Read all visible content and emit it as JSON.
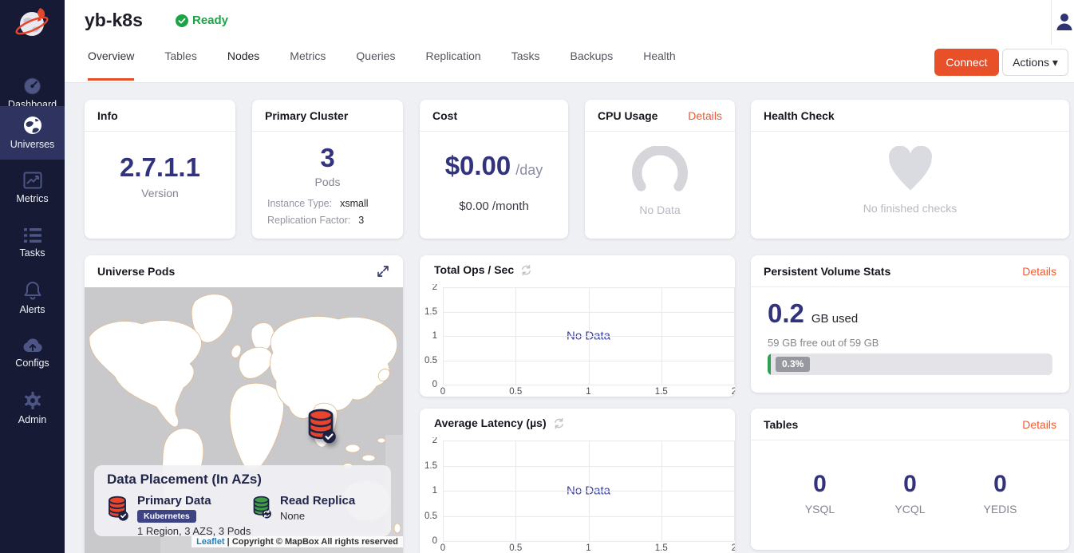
{
  "colors": {
    "accent_orange": "#e8502a",
    "navy_number": "#32337c",
    "status_green": "#1da345",
    "sidebar_bg": "#161a34",
    "sidebar_active_bg": "#2e345f",
    "no_data_indigo": "#3f4195",
    "progress_green": "#2ea052"
  },
  "icons": {
    "logo": "yugabyte-planet-rocket",
    "status": "check-circle",
    "user": "person",
    "actions_caret": "caret-down",
    "expand": "diagonal-resize-arrows",
    "refresh": "circular-arrows",
    "cpu_gauge": "arc-gauge",
    "health": "heart",
    "primary_marker": "red-database-check",
    "replica_marker": "green-database-sync"
  },
  "sidebar": {
    "items": [
      {
        "label": "Dashboard"
      },
      {
        "label": "Universes",
        "active": true
      },
      {
        "label": "Metrics"
      },
      {
        "label": "Tasks"
      },
      {
        "label": "Alerts"
      },
      {
        "label": "Configs"
      },
      {
        "label": "Admin"
      }
    ]
  },
  "header": {
    "title": "yb-k8s",
    "status": "Ready",
    "tabs": [
      "Overview",
      "Tables",
      "Nodes",
      "Metrics",
      "Queries",
      "Replication",
      "Tasks",
      "Backups",
      "Health"
    ],
    "active_tab": "Overview",
    "connect_label": "Connect",
    "actions_label": "Actions ▾"
  },
  "cards": {
    "info": {
      "title": "Info",
      "value": "2.7.1.1",
      "label": "Version"
    },
    "primary_cluster": {
      "title": "Primary Cluster",
      "value": "3",
      "label": "Pods",
      "rows": [
        {
          "k": "Instance Type:",
          "v": "xsmall"
        },
        {
          "k": "Replication Factor:",
          "v": "3"
        }
      ]
    },
    "cost": {
      "title": "Cost",
      "value": "$0.00",
      "unit": "/day",
      "secondary": "$0.00 /month"
    },
    "cpu": {
      "title": "CPU Usage",
      "link": "Details",
      "empty": "No Data"
    },
    "health": {
      "title": "Health Check",
      "empty": "No finished checks"
    },
    "pods_map": {
      "title": "Universe Pods",
      "overlay": {
        "heading": "Data Placement (In AZs)",
        "primary": {
          "label": "Primary Data",
          "badge": "Kubernetes",
          "desc": "1 Region, 3 AZS, 3 Pods"
        },
        "replica": {
          "label": "Read Replica",
          "desc": "None"
        }
      },
      "attribution": {
        "leaflet": "Leaflet",
        "separator": "|",
        "copyright": "Copyright © MapBox All rights reserved"
      }
    },
    "volume": {
      "title": "Persistent Volume Stats",
      "link": "Details",
      "value": "0.2",
      "unit": "GB used",
      "free": "59 GB free out of 59 GB",
      "percent": "0.3%"
    },
    "tables": {
      "title": "Tables",
      "link": "Details",
      "stats": [
        {
          "value": "0",
          "label": "YSQL"
        },
        {
          "value": "0",
          "label": "YCQL"
        },
        {
          "value": "0",
          "label": "YEDIS"
        }
      ]
    }
  },
  "chart_data": [
    {
      "type": "line",
      "title": "Total Ops / Sec",
      "series": [],
      "x": [],
      "x_ticks": [
        0,
        0.5,
        1,
        1.5,
        2
      ],
      "y_ticks": [
        0,
        0.5,
        1,
        1.5,
        2
      ],
      "xlim": [
        0,
        2
      ],
      "ylim": [
        0,
        2
      ],
      "grid": true,
      "legend": "none",
      "no_data_label": "No Data"
    },
    {
      "type": "line",
      "title": "Average Latency (µs)",
      "series": [],
      "x": [],
      "x_ticks": [
        0,
        0.5,
        1,
        1.5,
        2
      ],
      "y_ticks": [
        0,
        0.5,
        1,
        1.5,
        2
      ],
      "xlim": [
        0,
        2
      ],
      "ylim": [
        0,
        2
      ],
      "grid": true,
      "legend": "none",
      "no_data_label": "No Data"
    }
  ]
}
